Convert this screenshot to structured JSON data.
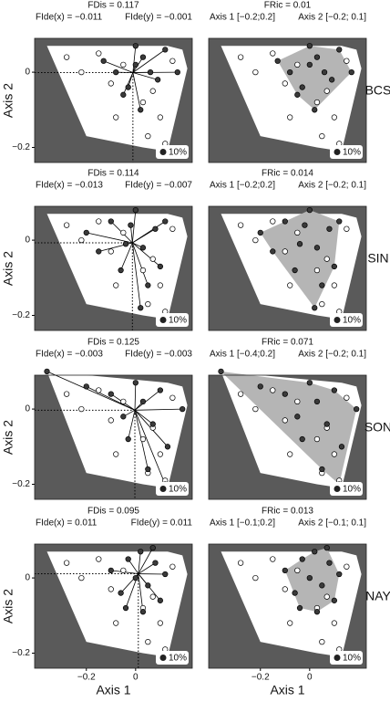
{
  "chart_data": [
    {
      "type": "scatter",
      "title": "FDis = 0.117",
      "annotations": [
        "FIde(x) = −0.011",
        "FIde(y) = −0.001"
      ],
      "ylabel": "Axis 2",
      "legend_label": "10%",
      "xlim": [
        -0.41,
        0.23
      ],
      "ylim": [
        -0.24,
        0.09
      ],
      "yticks": [
        {
          "value": 0,
          "label": "0"
        },
        {
          "value": -0.2,
          "label": "−0.2"
        }
      ],
      "hull": {
        "x": [
          -0.36,
          0.13,
          0.19,
          0.21,
          0.13,
          0.03,
          -0.2
        ],
        "y": [
          0.07,
          0.07,
          0.06,
          0.01,
          -0.21,
          -0.2,
          -0.17
        ]
      },
      "centroid": {
        "x": -0.011,
        "y": -0.001
      },
      "series": [
        {
          "color": "#ffffff",
          "x": [
            -0.28,
            -0.22,
            -0.15,
            -0.1,
            -0.05,
            0.03,
            0.07,
            0.1,
            0.15,
            -0.08,
            0.05,
            0.12
          ],
          "y": [
            0.04,
            0.0,
            0.05,
            -0.03,
            0.02,
            -0.08,
            -0.05,
            -0.12,
            0.03,
            -0.12,
            -0.17,
            -0.19
          ]
        },
        {
          "color": "#3a3a3a",
          "x": [
            -0.13,
            -0.08,
            -0.05,
            -0.03,
            0.0,
            0.0,
            0.03,
            0.06,
            0.09,
            0.12,
            0.17,
            0.02
          ],
          "y": [
            0.03,
            0.0,
            -0.06,
            -0.04,
            0.02,
            0.07,
            0.04,
            0.0,
            -0.02,
            0.06,
            0.0,
            -0.1
          ]
        }
      ]
    },
    {
      "type": "scatter",
      "title": "FRic = 0.01",
      "annotations": [
        "Axis 1 [−0.2;0.2]",
        "Axis 2 [−0.2; 0.1]"
      ],
      "row_label": "BCS",
      "legend_label": "10%",
      "occupied_hull": true,
      "xlim": [
        -0.41,
        0.23
      ],
      "ylim": [
        -0.24,
        0.09
      ],
      "hull": {
        "x": [
          -0.36,
          0.13,
          0.19,
          0.21,
          0.13,
          0.03,
          -0.2
        ],
        "y": [
          0.07,
          0.07,
          0.06,
          0.01,
          -0.21,
          -0.2,
          -0.17
        ]
      },
      "series": [
        {
          "color": "#ffffff",
          "x": [
            -0.28,
            -0.22,
            -0.15,
            -0.1,
            -0.05,
            0.03,
            0.07,
            0.1,
            0.15,
            -0.08,
            0.05,
            0.12
          ],
          "y": [
            0.04,
            0.0,
            0.05,
            -0.03,
            0.02,
            -0.08,
            -0.05,
            -0.12,
            0.03,
            -0.12,
            -0.17,
            -0.19
          ]
        },
        {
          "color": "#3a3a3a",
          "x": [
            -0.13,
            -0.08,
            -0.05,
            -0.03,
            0.0,
            0.0,
            0.03,
            0.06,
            0.09,
            0.12,
            0.17,
            0.02
          ],
          "y": [
            0.03,
            0.0,
            -0.06,
            -0.04,
            0.02,
            0.07,
            0.04,
            0.0,
            -0.02,
            0.06,
            0.0,
            -0.1
          ]
        }
      ]
    },
    {
      "type": "scatter",
      "title": "FDis = 0.114",
      "annotations": [
        "FIde(x) = −0.013",
        "FIde(y) = −0.007"
      ],
      "ylabel": "Axis 2",
      "legend_label": "10%",
      "xlim": [
        -0.41,
        0.23
      ],
      "ylim": [
        -0.24,
        0.09
      ],
      "yticks": [
        {
          "value": 0,
          "label": "0"
        },
        {
          "value": -0.2,
          "label": "−0.2"
        }
      ],
      "hull": {
        "x": [
          -0.36,
          0.13,
          0.19,
          0.21,
          0.13,
          0.03,
          -0.2
        ],
        "y": [
          0.07,
          0.07,
          0.06,
          0.01,
          -0.21,
          -0.2,
          -0.17
        ]
      },
      "centroid": {
        "x": -0.013,
        "y": -0.007
      },
      "series": [
        {
          "color": "#ffffff",
          "x": [
            -0.28,
            -0.22,
            -0.15,
            -0.1,
            -0.05,
            0.03,
            0.07,
            0.1,
            0.15,
            -0.08,
            0.05,
            0.12
          ],
          "y": [
            0.04,
            0.0,
            0.05,
            -0.03,
            0.02,
            -0.08,
            -0.05,
            -0.12,
            0.03,
            -0.12,
            -0.17,
            -0.19
          ]
        },
        {
          "color": "#3a3a3a",
          "x": [
            -0.2,
            -0.15,
            -0.1,
            -0.06,
            -0.02,
            0.0,
            0.03,
            0.05,
            0.08,
            0.1,
            0.12,
            0.02,
            -0.04
          ],
          "y": [
            0.02,
            -0.03,
            0.05,
            -0.08,
            0.04,
            0.08,
            -0.02,
            -0.12,
            0.03,
            -0.07,
            0.05,
            -0.18,
            -0.01
          ]
        }
      ]
    },
    {
      "type": "scatter",
      "title": "FRic = 0.014",
      "annotations": [
        "Axis 1 [−0.2;0.2]",
        "Axis 2 [−0.2; 0.1]"
      ],
      "row_label": "SIN",
      "legend_label": "10%",
      "occupied_hull": true,
      "xlim": [
        -0.41,
        0.23
      ],
      "ylim": [
        -0.24,
        0.09
      ],
      "hull": {
        "x": [
          -0.36,
          0.13,
          0.19,
          0.21,
          0.13,
          0.03,
          -0.2
        ],
        "y": [
          0.07,
          0.07,
          0.06,
          0.01,
          -0.21,
          -0.2,
          -0.17
        ]
      },
      "series": [
        {
          "color": "#ffffff",
          "x": [
            -0.28,
            -0.22,
            -0.15,
            -0.1,
            -0.05,
            0.03,
            0.07,
            0.1,
            0.15,
            -0.08,
            0.05,
            0.12
          ],
          "y": [
            0.04,
            0.0,
            0.05,
            -0.03,
            0.02,
            -0.08,
            -0.05,
            -0.12,
            0.03,
            -0.12,
            -0.17,
            -0.19
          ]
        },
        {
          "color": "#3a3a3a",
          "x": [
            -0.2,
            -0.15,
            -0.1,
            -0.06,
            -0.02,
            0.0,
            0.03,
            0.05,
            0.08,
            0.1,
            0.12,
            0.02,
            -0.04
          ],
          "y": [
            0.02,
            -0.03,
            0.05,
            -0.08,
            0.04,
            0.08,
            -0.02,
            -0.12,
            0.03,
            -0.07,
            0.05,
            -0.18,
            -0.01
          ]
        }
      ]
    },
    {
      "type": "scatter",
      "title": "FDis = 0.125",
      "annotations": [
        "FIde(x) = −0.003",
        "FIde(y) = −0.003"
      ],
      "ylabel": "Axis 2",
      "legend_label": "10%",
      "xlim": [
        -0.41,
        0.23
      ],
      "ylim": [
        -0.24,
        0.09
      ],
      "yticks": [
        {
          "value": 0,
          "label": "0"
        },
        {
          "value": -0.2,
          "label": "−0.2"
        }
      ],
      "hull": {
        "x": [
          -0.36,
          0.13,
          0.19,
          0.21,
          0.13,
          0.03,
          -0.2
        ],
        "y": [
          0.1,
          0.07,
          0.06,
          0.01,
          -0.21,
          -0.2,
          -0.17
        ]
      },
      "centroid": {
        "x": -0.003,
        "y": -0.003
      },
      "series": [
        {
          "color": "#ffffff",
          "x": [
            -0.28,
            -0.22,
            -0.15,
            -0.1,
            -0.05,
            0.03,
            0.07,
            0.1,
            0.15,
            -0.08,
            0.05,
            0.12
          ],
          "y": [
            0.04,
            0.0,
            0.05,
            -0.03,
            0.02,
            -0.08,
            -0.05,
            -0.12,
            0.03,
            -0.12,
            -0.17,
            -0.19
          ]
        },
        {
          "color": "#3a3a3a",
          "x": [
            -0.36,
            -0.2,
            -0.1,
            -0.05,
            0.0,
            0.03,
            0.07,
            0.1,
            0.13,
            0.19,
            0.12,
            0.05,
            -0.03
          ],
          "y": [
            0.1,
            0.06,
            0.04,
            -0.02,
            0.07,
            0.02,
            -0.04,
            0.05,
            -0.1,
            0.0,
            -0.2,
            -0.16,
            -0.08
          ]
        }
      ]
    },
    {
      "type": "scatter",
      "title": "FRic = 0.071",
      "annotations": [
        "Axis 1 [−0.4;0.2]",
        "Axis 2 [−0.2; 0.1]"
      ],
      "row_label": "SON",
      "legend_label": "10%",
      "occupied_hull": true,
      "xlim": [
        -0.41,
        0.23
      ],
      "ylim": [
        -0.24,
        0.09
      ],
      "hull": {
        "x": [
          -0.36,
          0.13,
          0.19,
          0.21,
          0.13,
          0.03,
          -0.2
        ],
        "y": [
          0.1,
          0.07,
          0.06,
          0.01,
          -0.21,
          -0.2,
          -0.17
        ]
      },
      "series": [
        {
          "color": "#ffffff",
          "x": [
            -0.28,
            -0.22,
            -0.15,
            -0.1,
            -0.05,
            0.03,
            0.07,
            0.1,
            0.15,
            -0.08,
            0.05,
            0.12
          ],
          "y": [
            0.04,
            0.0,
            0.05,
            -0.03,
            0.02,
            -0.08,
            -0.05,
            -0.12,
            0.03,
            -0.12,
            -0.17,
            -0.19
          ]
        },
        {
          "color": "#3a3a3a",
          "x": [
            -0.36,
            -0.2,
            -0.1,
            -0.05,
            0.0,
            0.03,
            0.07,
            0.1,
            0.13,
            0.19,
            0.12,
            0.05,
            -0.03
          ],
          "y": [
            0.1,
            0.06,
            0.04,
            -0.02,
            0.07,
            0.02,
            -0.04,
            0.05,
            -0.1,
            0.0,
            -0.2,
            -0.16,
            -0.08
          ]
        }
      ]
    },
    {
      "type": "scatter",
      "title": "FDis = 0.095",
      "annotations": [
        "FIde(x) = 0.011",
        "FIde(y) = 0.011"
      ],
      "ylabel": "Axis 2",
      "xlabel": "Axis 1",
      "legend_label": "10%",
      "xlim": [
        -0.41,
        0.23
      ],
      "ylim": [
        -0.24,
        0.09
      ],
      "yticks": [
        {
          "value": 0,
          "label": "0"
        },
        {
          "value": -0.2,
          "label": "−0.2"
        }
      ],
      "xticks": [
        {
          "value": -0.2,
          "label": "−0.2"
        },
        {
          "value": 0,
          "label": "0"
        }
      ],
      "hull": {
        "x": [
          -0.36,
          0.13,
          0.19,
          0.21,
          0.13,
          0.03,
          -0.2
        ],
        "y": [
          0.07,
          0.07,
          0.06,
          0.01,
          -0.21,
          -0.2,
          -0.17
        ]
      },
      "centroid": {
        "x": 0.011,
        "y": 0.011
      },
      "series": [
        {
          "color": "#ffffff",
          "x": [
            -0.28,
            -0.22,
            -0.15,
            -0.1,
            -0.05,
            0.03,
            0.07,
            0.1,
            0.15,
            -0.08,
            0.05,
            0.12
          ],
          "y": [
            0.04,
            0.0,
            0.05,
            -0.03,
            0.02,
            -0.08,
            -0.05,
            -0.12,
            0.03,
            -0.12,
            -0.17,
            -0.19
          ]
        },
        {
          "color": "#3a3a3a",
          "x": [
            -0.1,
            -0.06,
            -0.03,
            0.0,
            0.02,
            0.05,
            0.08,
            0.1,
            0.12,
            -0.04,
            0.03,
            0.07
          ],
          "y": [
            0.02,
            -0.04,
            0.05,
            0.0,
            0.07,
            -0.02,
            0.04,
            -0.06,
            0.01,
            -0.08,
            -0.09,
            0.08
          ]
        }
      ]
    },
    {
      "type": "scatter",
      "title": "FRic = 0.013",
      "annotations": [
        "Axis 1 [−0.1;0.2]",
        "Axis 2 [−0.1; 0.1]"
      ],
      "row_label": "NAY",
      "xlabel": "Axis 1",
      "legend_label": "10%",
      "occupied_hull": true,
      "xlim": [
        -0.41,
        0.23
      ],
      "ylim": [
        -0.24,
        0.09
      ],
      "xticks": [
        {
          "value": -0.2,
          "label": "−0.2"
        },
        {
          "value": 0,
          "label": "0"
        }
      ],
      "hull": {
        "x": [
          -0.36,
          0.13,
          0.19,
          0.21,
          0.13,
          0.03,
          -0.2
        ],
        "y": [
          0.07,
          0.07,
          0.06,
          0.01,
          -0.21,
          -0.2,
          -0.17
        ]
      },
      "series": [
        {
          "color": "#ffffff",
          "x": [
            -0.28,
            -0.22,
            -0.15,
            -0.1,
            -0.05,
            0.03,
            0.07,
            0.1,
            0.15,
            -0.08,
            0.05,
            0.12
          ],
          "y": [
            0.04,
            0.0,
            0.05,
            -0.03,
            0.02,
            -0.08,
            -0.05,
            -0.12,
            0.03,
            -0.12,
            -0.17,
            -0.19
          ]
        },
        {
          "color": "#3a3a3a",
          "x": [
            -0.1,
            -0.06,
            -0.03,
            0.0,
            0.02,
            0.05,
            0.08,
            0.1,
            0.12,
            -0.04,
            0.03,
            0.07
          ],
          "y": [
            0.02,
            -0.04,
            0.05,
            0.0,
            0.07,
            -0.02,
            0.04,
            -0.06,
            0.01,
            -0.08,
            -0.09,
            0.08
          ]
        }
      ]
    }
  ]
}
